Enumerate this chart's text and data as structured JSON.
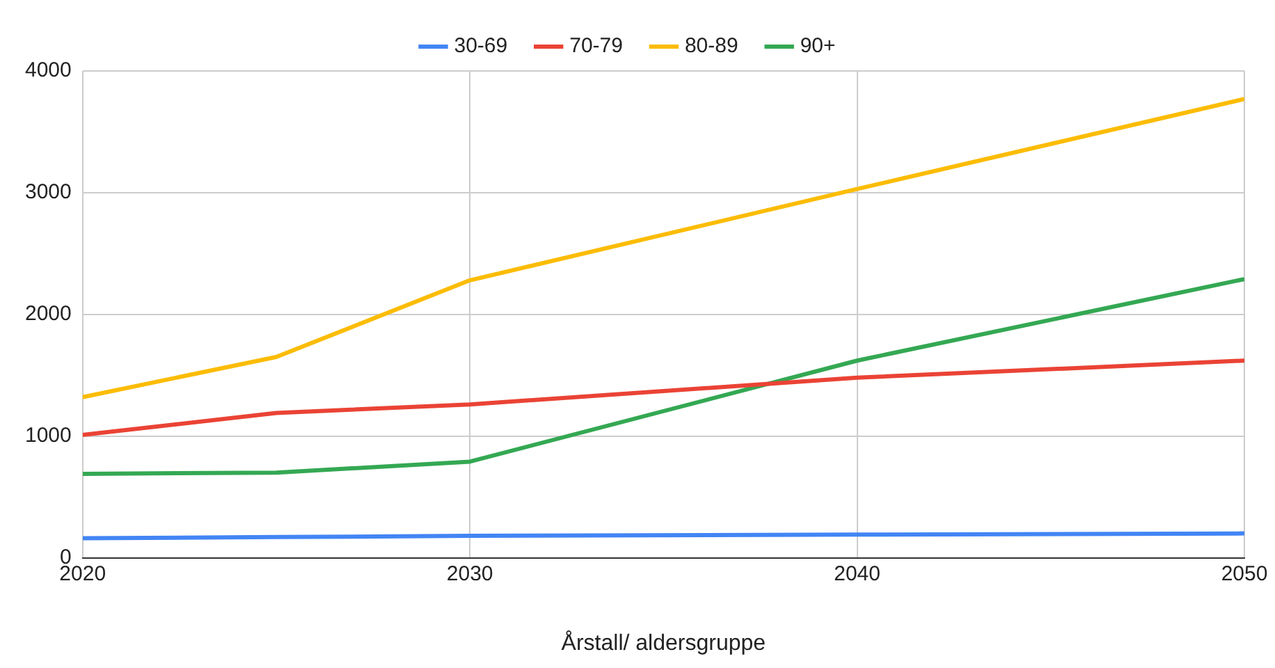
{
  "chart_data": {
    "type": "line",
    "xlabel": "Årstall/ aldersgruppe",
    "x": [
      2020,
      2025,
      2030,
      2040,
      2050
    ],
    "series": [
      {
        "name": "30-69",
        "color": "#4285f4",
        "values": [
          160,
          170,
          180,
          190,
          200
        ]
      },
      {
        "name": "70-79",
        "color": "#ea4335",
        "values": [
          1010,
          1190,
          1260,
          1480,
          1620
        ]
      },
      {
        "name": "80-89",
        "color": "#fbbc04",
        "values": [
          1320,
          1650,
          2280,
          3030,
          3770
        ]
      },
      {
        "name": "90+",
        "color": "#34a853",
        "values": [
          690,
          700,
          790,
          1620,
          2290
        ]
      }
    ],
    "xlim": [
      2020,
      2050
    ],
    "xticks": [
      2020,
      2030,
      2040,
      2050
    ],
    "ylim": [
      0,
      4000
    ],
    "yticks": [
      0,
      1000,
      2000,
      3000,
      4000
    ],
    "grid": true,
    "legend": "top",
    "marker": "none",
    "line_style": "solid"
  }
}
